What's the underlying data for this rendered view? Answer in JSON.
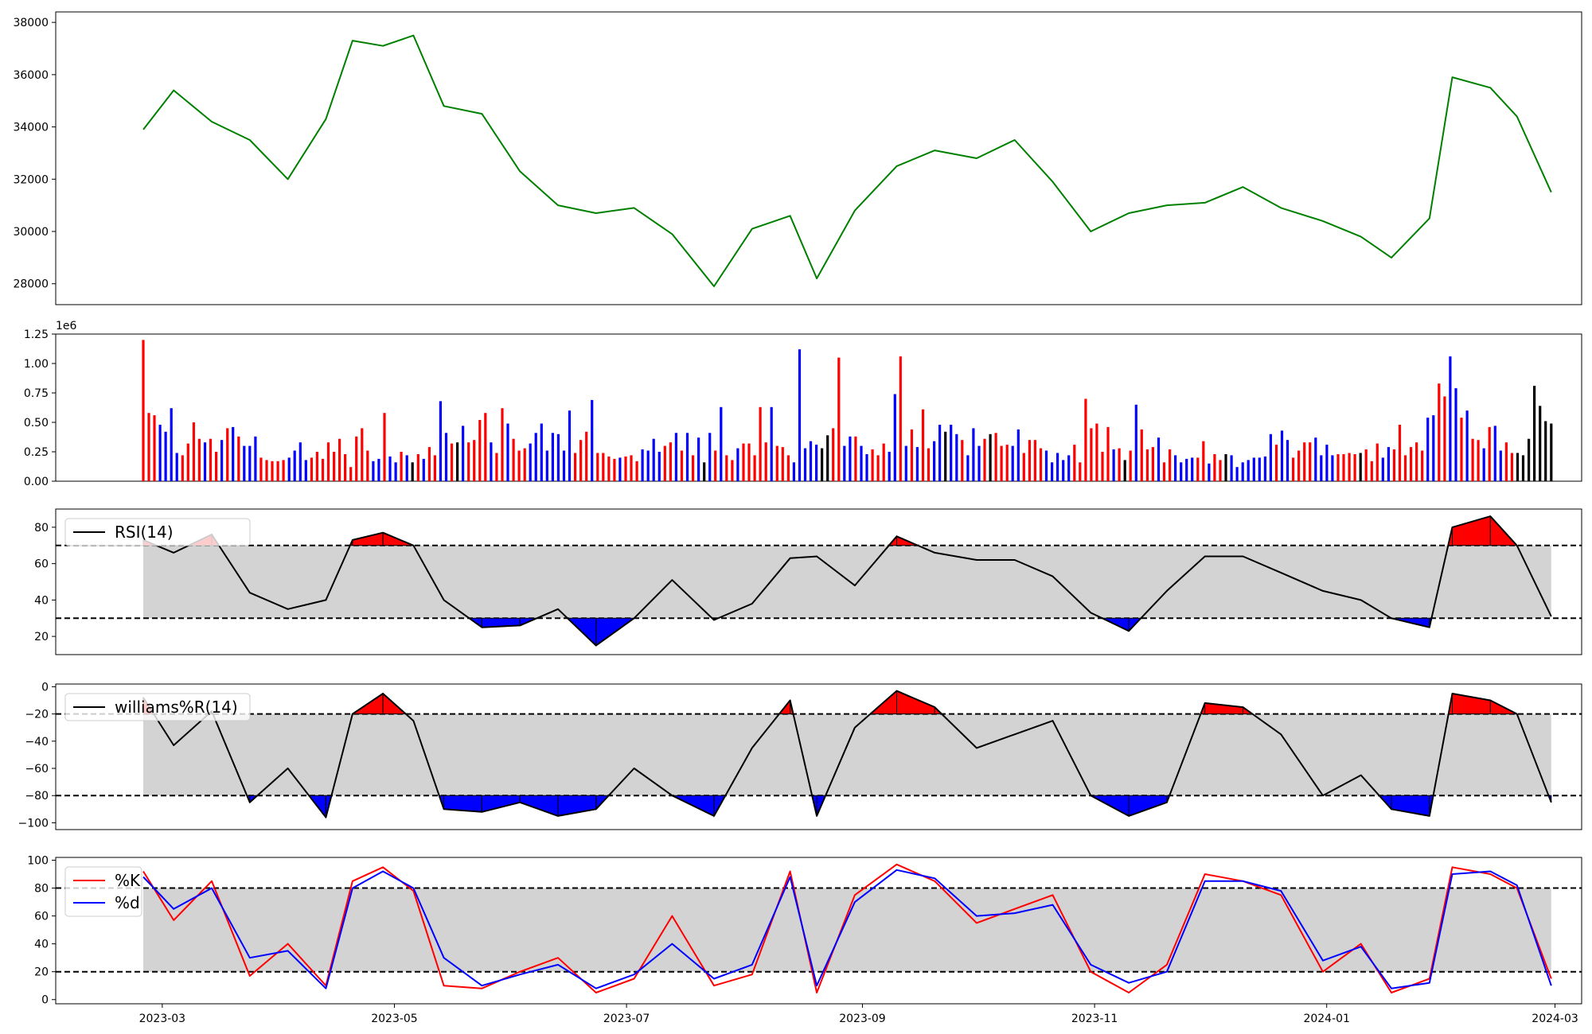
{
  "chart_data": [
    {
      "type": "line",
      "panel": "price",
      "color": "#008000",
      "ylim": [
        27200,
        38400
      ],
      "yticks": [
        28000,
        30000,
        32000,
        34000,
        36000,
        38000
      ],
      "yticklabels": [
        "28000",
        "30000",
        "32000",
        "34000",
        "36000",
        "38000"
      ],
      "x": [
        "2023-02-24",
        "2023-03-04",
        "2023-03-14",
        "2023-03-24",
        "2023-04-03",
        "2023-04-13",
        "2023-04-20",
        "2023-04-28",
        "2023-05-06",
        "2023-05-14",
        "2023-05-24",
        "2023-06-03",
        "2023-06-13",
        "2023-06-23",
        "2023-07-03",
        "2023-07-13",
        "2023-07-24",
        "2023-08-03",
        "2023-08-13",
        "2023-08-20",
        "2023-08-30",
        "2023-09-10",
        "2023-09-20",
        "2023-10-01",
        "2023-10-11",
        "2023-10-21",
        "2023-10-31",
        "2023-11-10",
        "2023-11-20",
        "2023-11-30",
        "2023-12-10",
        "2023-12-20",
        "2023-12-31",
        "2024-01-10",
        "2024-01-18",
        "2024-01-28",
        "2024-02-03",
        "2024-02-13",
        "2024-02-20",
        "2024-02-29"
      ],
      "values": [
        33900,
        35400,
        34200,
        33500,
        32000,
        34300,
        37300,
        37100,
        37500,
        34800,
        34500,
        32300,
        31000,
        30700,
        30900,
        29900,
        27900,
        30100,
        30600,
        28200,
        30800,
        32500,
        33100,
        32800,
        33500,
        31900,
        30000,
        30700,
        31000,
        31100,
        31700,
        30900,
        30400,
        29800,
        29000,
        30500,
        35900,
        35500,
        34400,
        31500
      ]
    },
    {
      "type": "bar",
      "panel": "volume",
      "offset_text": "1e6",
      "ylim": [
        0,
        1.25
      ],
      "yticks": [
        0,
        0.25,
        0.5,
        0.75,
        1.0,
        1.25
      ],
      "yticklabels": [
        "0.00",
        "0.25",
        "0.50",
        "0.75",
        "1.00",
        "1.25"
      ],
      "colors": {
        "up": "#ff0000",
        "down": "#0000ff",
        "flat": "#000000"
      },
      "x_start": "2023-02-24",
      "x_end": "2024-02-29",
      "count": 245,
      "values": [
        1.2,
        0.58,
        0.56,
        0.48,
        0.42,
        0.62,
        0.24,
        0.22,
        0.32,
        0.5,
        0.36,
        0.33,
        0.36,
        0.25,
        0.35,
        0.45,
        0.46,
        0.38,
        0.3,
        0.3,
        0.38,
        0.2,
        0.18,
        0.17,
        0.17,
        0.18,
        0.2,
        0.26,
        0.33,
        0.18,
        0.2,
        0.25,
        0.19,
        0.33,
        0.25,
        0.36,
        0.23,
        0.12,
        0.38,
        0.45,
        0.26,
        0.17,
        0.19,
        0.58,
        0.21,
        0.16,
        0.25,
        0.22,
        0.16,
        0.23,
        0.19,
        0.29,
        0.22,
        0.68,
        0.41,
        0.32,
        0.33,
        0.47,
        0.33,
        0.35,
        0.52,
        0.58,
        0.33,
        0.24,
        0.62,
        0.49,
        0.36,
        0.26,
        0.28,
        0.32,
        0.41,
        0.49,
        0.26,
        0.41,
        0.4,
        0.26,
        0.6,
        0.24,
        0.35,
        0.42,
        0.69,
        0.24,
        0.24,
        0.21,
        0.19,
        0.2,
        0.21,
        0.22,
        0.17,
        0.27,
        0.26,
        0.36,
        0.25,
        0.3,
        0.33,
        0.41,
        0.26,
        0.41,
        0.22,
        0.37,
        0.16,
        0.41,
        0.26,
        0.63,
        0.22,
        0.18,
        0.28,
        0.32,
        0.32,
        0.22,
        0.63,
        0.33,
        0.63,
        0.3,
        0.29,
        0.22,
        0.16,
        1.12,
        0.28,
        0.34,
        0.31,
        0.28,
        0.39,
        0.45,
        1.05,
        0.3,
        0.38,
        0.38,
        0.3,
        0.23,
        0.27,
        0.22,
        0.32,
        0.25,
        0.74,
        1.06,
        0.3,
        0.44,
        0.29,
        0.61,
        0.28,
        0.34,
        0.48,
        0.42,
        0.48,
        0.4,
        0.35,
        0.22,
        0.45,
        0.3,
        0.36,
        0.4,
        0.41,
        0.3,
        0.31,
        0.3,
        0.44,
        0.24,
        0.35,
        0.35,
        0.28,
        0.26,
        0.16,
        0.24,
        0.18,
        0.22,
        0.31,
        0.16,
        0.7,
        0.45,
        0.49,
        0.25,
        0.46,
        0.27,
        0.28,
        0.18,
        0.26,
        0.65,
        0.44,
        0.27,
        0.29,
        0.37,
        0.16,
        0.27,
        0.22,
        0.16,
        0.19,
        0.2,
        0.2,
        0.34,
        0.15,
        0.23,
        0.18,
        0.23,
        0.22,
        0.12,
        0.16,
        0.18,
        0.2,
        0.2,
        0.21,
        0.4,
        0.31,
        0.43,
        0.35,
        0.2,
        0.26,
        0.33,
        0.33,
        0.37,
        0.22,
        0.31,
        0.22,
        0.23,
        0.23,
        0.24,
        0.23,
        0.24,
        0.27,
        0.17,
        0.32,
        0.2,
        0.29,
        0.27,
        0.48,
        0.22,
        0.29,
        0.33,
        0.26,
        0.54,
        0.56,
        0.83,
        0.72,
        1.06,
        0.79,
        0.54,
        0.6,
        0.36,
        0.35,
        0.28,
        0.46,
        0.47,
        0.26,
        0.33,
        0.24,
        0.24,
        0.22,
        0.36,
        0.81,
        0.64,
        0.51,
        0.49
      ],
      "bar_colors": [
        "r",
        "r",
        "r",
        "b",
        "b",
        "b",
        "b",
        "r",
        "r",
        "r",
        "r",
        "b",
        "r",
        "r",
        "b",
        "r",
        "b",
        "r",
        "b",
        "b",
        "b",
        "r",
        "r",
        "r",
        "r",
        "r",
        "b",
        "b",
        "b",
        "b",
        "r",
        "r",
        "r",
        "r",
        "r",
        "r",
        "r",
        "r",
        "r",
        "r",
        "r",
        "b",
        "b",
        "r",
        "b",
        "b",
        "r",
        "b",
        "k",
        "r",
        "b",
        "r",
        "r",
        "b",
        "b",
        "r",
        "k",
        "b",
        "r",
        "r",
        "r",
        "r",
        "b",
        "r",
        "r",
        "b",
        "r",
        "r",
        "r",
        "b",
        "b",
        "b",
        "b",
        "b",
        "b",
        "b",
        "b",
        "r",
        "r",
        "r",
        "b",
        "r",
        "r",
        "r",
        "r",
        "b",
        "r",
        "r",
        "r",
        "b",
        "b",
        "b",
        "b",
        "r",
        "r",
        "b",
        "r",
        "b",
        "r",
        "b",
        "k",
        "b",
        "r",
        "b",
        "r",
        "r",
        "b",
        "r",
        "r",
        "r",
        "r",
        "r",
        "b",
        "r",
        "r",
        "r",
        "b",
        "b",
        "b",
        "b",
        "b",
        "k",
        "k",
        "r",
        "r",
        "b",
        "b",
        "r",
        "b",
        "b",
        "r",
        "r",
        "r",
        "b",
        "b",
        "r",
        "b",
        "r",
        "b",
        "r",
        "r",
        "b",
        "b",
        "k",
        "b",
        "b",
        "r",
        "b",
        "b",
        "b",
        "r",
        "k",
        "r",
        "r",
        "r",
        "b",
        "b",
        "r",
        "r",
        "r",
        "r",
        "b",
        "b",
        "b",
        "b",
        "b",
        "r",
        "r",
        "r",
        "r",
        "r",
        "r",
        "r",
        "b",
        "r",
        "k",
        "r",
        "b",
        "r",
        "r",
        "r",
        "b",
        "r",
        "r",
        "b",
        "b",
        "b",
        "b",
        "r",
        "r",
        "b",
        "r",
        "r",
        "k",
        "b",
        "b",
        "b",
        "b",
        "b",
        "b",
        "b",
        "b",
        "r",
        "b",
        "b",
        "r",
        "r",
        "r",
        "r",
        "b",
        "b",
        "b",
        "b",
        "r",
        "r",
        "r",
        "r",
        "k",
        "r",
        "r",
        "r",
        "b",
        "b",
        "r",
        "r",
        "r",
        "r",
        "r",
        "r",
        "b",
        "b",
        "r",
        "r",
        "b",
        "b",
        "r",
        "b",
        "r",
        "r",
        "b",
        "r",
        "b",
        "b",
        "r",
        "r"
      ]
    },
    {
      "type": "line",
      "panel": "rsi",
      "legend": [
        "RSI(14)"
      ],
      "ylim": [
        10,
        90
      ],
      "yticks": [
        20,
        40,
        60,
        80
      ],
      "yticklabels": [
        "20",
        "40",
        "60",
        "80"
      ],
      "band": [
        30,
        70
      ],
      "x": [
        "2023-02-24",
        "2023-03-04",
        "2023-03-14",
        "2023-03-24",
        "2023-04-03",
        "2023-04-13",
        "2023-04-20",
        "2023-04-28",
        "2023-05-06",
        "2023-05-14",
        "2023-05-24",
        "2023-06-03",
        "2023-06-13",
        "2023-06-23",
        "2023-07-03",
        "2023-07-13",
        "2023-07-24",
        "2023-08-03",
        "2023-08-13",
        "2023-08-20",
        "2023-08-30",
        "2023-09-10",
        "2023-09-20",
        "2023-10-01",
        "2023-10-11",
        "2023-10-21",
        "2023-10-31",
        "2023-11-10",
        "2023-11-20",
        "2023-11-30",
        "2023-12-10",
        "2023-12-20",
        "2023-12-31",
        "2024-01-10",
        "2024-01-18",
        "2024-01-28",
        "2024-02-03",
        "2024-02-13",
        "2024-02-20",
        "2024-02-29"
      ],
      "values": [
        73,
        66,
        76,
        44,
        35,
        40,
        73,
        77,
        70,
        40,
        25,
        26,
        35,
        15,
        30,
        51,
        29,
        38,
        63,
        64,
        48,
        75,
        66,
        62,
        62,
        53,
        33,
        23,
        45,
        64,
        64,
        55,
        45,
        40,
        30,
        25,
        80,
        86,
        70,
        31
      ]
    },
    {
      "type": "line",
      "panel": "williams",
      "legend": [
        "williams%R(14)"
      ],
      "ylim": [
        -105,
        2
      ],
      "yticks": [
        -100,
        -80,
        -60,
        -40,
        -20,
        0
      ],
      "yticklabels": [
        "−100",
        "−80",
        "−60",
        "−40",
        "−20",
        "0"
      ],
      "band": [
        -80,
        -20
      ],
      "x": [
        "2023-02-24",
        "2023-03-04",
        "2023-03-14",
        "2023-03-24",
        "2023-04-03",
        "2023-04-13",
        "2023-04-20",
        "2023-04-28",
        "2023-05-06",
        "2023-05-14",
        "2023-05-24",
        "2023-06-03",
        "2023-06-13",
        "2023-06-23",
        "2023-07-03",
        "2023-07-13",
        "2023-07-24",
        "2023-08-03",
        "2023-08-13",
        "2023-08-20",
        "2023-08-30",
        "2023-09-10",
        "2023-09-20",
        "2023-10-01",
        "2023-10-11",
        "2023-10-21",
        "2023-10-31",
        "2023-11-10",
        "2023-11-20",
        "2023-11-30",
        "2023-12-10",
        "2023-12-20",
        "2023-12-31",
        "2024-01-10",
        "2024-01-18",
        "2024-01-28",
        "2024-02-03",
        "2024-02-13",
        "2024-02-20",
        "2024-02-29"
      ],
      "values": [
        -8,
        -43,
        -18,
        -85,
        -60,
        -96,
        -20,
        -5,
        -25,
        -90,
        -92,
        -85,
        -95,
        -90,
        -60,
        -80,
        -95,
        -45,
        -10,
        -95,
        -30,
        -3,
        -15,
        -45,
        -35,
        -25,
        -80,
        -95,
        -85,
        -12,
        -15,
        -35,
        -80,
        -65,
        -90,
        -95,
        -5,
        -10,
        -20,
        -85
      ]
    },
    {
      "type": "line",
      "panel": "stochastic",
      "legend": [
        "%K",
        "%d"
      ],
      "ylim": [
        -3,
        102
      ],
      "yticks": [
        0,
        20,
        40,
        60,
        80,
        100
      ],
      "yticklabels": [
        "0",
        "20",
        "40",
        "60",
        "80",
        "100"
      ],
      "band": [
        20,
        80
      ],
      "xticks": [
        "2023-03-01",
        "2023-05-01",
        "2023-07-01",
        "2023-09-01",
        "2023-11-01",
        "2024-01-01",
        "2024-03-01"
      ],
      "xticklabels": [
        "2023-03",
        "2023-05",
        "2023-07",
        "2023-09",
        "2023-11",
        "2024-01",
        "2024-03"
      ],
      "x": [
        "2023-02-24",
        "2023-03-04",
        "2023-03-14",
        "2023-03-24",
        "2023-04-03",
        "2023-04-13",
        "2023-04-20",
        "2023-04-28",
        "2023-05-06",
        "2023-05-14",
        "2023-05-24",
        "2023-06-03",
        "2023-06-13",
        "2023-06-23",
        "2023-07-03",
        "2023-07-13",
        "2023-07-24",
        "2023-08-03",
        "2023-08-13",
        "2023-08-20",
        "2023-08-30",
        "2023-09-10",
        "2023-09-20",
        "2023-10-01",
        "2023-10-11",
        "2023-10-21",
        "2023-10-31",
        "2023-11-10",
        "2023-11-20",
        "2023-11-30",
        "2023-12-10",
        "2023-12-20",
        "2023-12-31",
        "2024-01-10",
        "2024-01-18",
        "2024-01-28",
        "2024-02-03",
        "2024-02-13",
        "2024-02-20",
        "2024-02-29"
      ],
      "series": [
        {
          "name": "%K",
          "color": "#ff0000",
          "values": [
            92,
            57,
            85,
            17,
            40,
            10,
            85,
            95,
            78,
            10,
            8,
            20,
            30,
            5,
            15,
            60,
            10,
            18,
            92,
            5,
            75,
            97,
            85,
            55,
            65,
            75,
            20,
            5,
            25,
            90,
            85,
            75,
            20,
            40,
            5,
            15,
            95,
            90,
            80,
            15
          ]
        },
        {
          "name": "%d",
          "color": "#0000ff",
          "values": [
            88,
            65,
            80,
            30,
            35,
            8,
            80,
            92,
            80,
            30,
            10,
            18,
            25,
            8,
            18,
            40,
            15,
            25,
            88,
            10,
            70,
            93,
            87,
            60,
            62,
            68,
            25,
            12,
            20,
            85,
            85,
            78,
            28,
            38,
            8,
            12,
            90,
            92,
            82,
            10
          ]
        }
      ]
    }
  ]
}
